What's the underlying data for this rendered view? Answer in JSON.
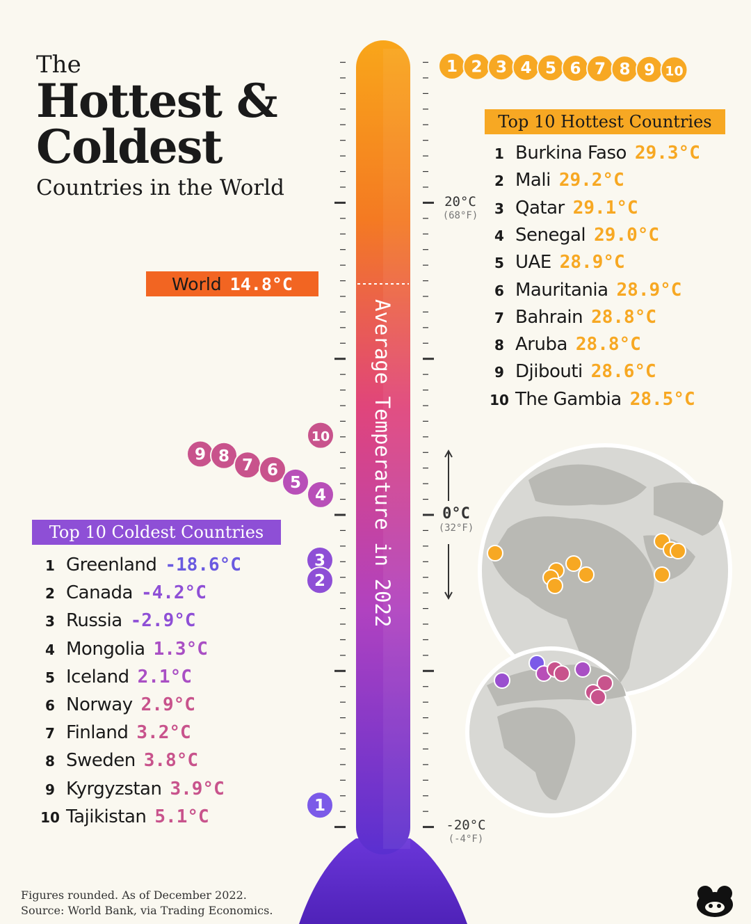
{
  "title": {
    "line1": "The",
    "line2": "Hottest &",
    "line3": "Coldest",
    "line4": "Countries in the World"
  },
  "axis": {
    "vertical_label": "Average Temperature in 2022",
    "ticks": [
      {
        "c": "20°C",
        "f": "(68°F)"
      },
      {
        "c": "0°C",
        "f": "(32°F)"
      },
      {
        "c": "-20°C",
        "f": "(-4°F)"
      }
    ]
  },
  "world": {
    "label": "World",
    "value": "14.8°C"
  },
  "colors": {
    "hot": "#f7a823",
    "cold_purple": "#8e4fd6",
    "cold_pink": "#c8538c",
    "world": "#f26522",
    "thermo_top": "#f9a61a",
    "thermo_mid": "#e0457b",
    "thermo_bottom": "#6a36d9"
  },
  "hottest": {
    "title": "Top 10 Hottest Countries",
    "items": [
      {
        "rank": "1",
        "name": "Burkina Faso",
        "value": "29.3°C"
      },
      {
        "rank": "2",
        "name": "Mali",
        "value": "29.2°C"
      },
      {
        "rank": "3",
        "name": "Qatar",
        "value": "29.1°C"
      },
      {
        "rank": "4",
        "name": "Senegal",
        "value": "29.0°C"
      },
      {
        "rank": "5",
        "name": "UAE",
        "value": "28.9°C"
      },
      {
        "rank": "6",
        "name": "Mauritania",
        "value": "28.9°C"
      },
      {
        "rank": "7",
        "name": "Bahrain",
        "value": "28.8°C"
      },
      {
        "rank": "8",
        "name": "Aruba",
        "value": "28.8°C"
      },
      {
        "rank": "9",
        "name": "Djibouti",
        "value": "28.6°C"
      },
      {
        "rank": "10",
        "name": "The Gambia",
        "value": "28.5°C"
      }
    ]
  },
  "coldest": {
    "title": "Top 10 Coldest Countries",
    "items": [
      {
        "rank": "1",
        "name": "Greenland",
        "value": "-18.6°C"
      },
      {
        "rank": "2",
        "name": "Canada",
        "value": "-4.2°C"
      },
      {
        "rank": "3",
        "name": "Russia",
        "value": "-2.9°C"
      },
      {
        "rank": "4",
        "name": "Mongolia",
        "value": "1.3°C"
      },
      {
        "rank": "5",
        "name": "Iceland",
        "value": "2.1°C"
      },
      {
        "rank": "6",
        "name": "Norway",
        "value": "2.9°C"
      },
      {
        "rank": "7",
        "name": "Finland",
        "value": "3.2°C"
      },
      {
        "rank": "8",
        "name": "Sweden",
        "value": "3.8°C"
      },
      {
        "rank": "9",
        "name": "Kyrgyzstan",
        "value": "3.9°C"
      },
      {
        "rank": "10",
        "name": "Tajikistan",
        "value": "5.1°C"
      }
    ]
  },
  "footnote": {
    "line1": "Figures rounded. As of December 2022.",
    "line2": "Source: World Bank, via Trading Economics."
  },
  "chart_data": {
    "type": "scatter",
    "ylim": [
      -20,
      30
    ],
    "series": [
      {
        "name": "Top 10 Hottest Countries",
        "ranks": [
          1,
          2,
          3,
          4,
          5,
          6,
          7,
          8,
          9,
          10
        ],
        "values": [
          29.3,
          29.2,
          29.1,
          29.0,
          28.9,
          28.9,
          28.8,
          28.8,
          28.6,
          28.5
        ]
      },
      {
        "name": "Top 10 Coldest Countries",
        "ranks": [
          1,
          2,
          3,
          4,
          5,
          6,
          7,
          8,
          9,
          10
        ],
        "values": [
          -18.6,
          -4.2,
          -2.9,
          1.3,
          2.1,
          2.9,
          3.2,
          3.8,
          3.9,
          5.1
        ]
      }
    ],
    "reference": {
      "label": "World",
      "value": 14.8
    }
  }
}
